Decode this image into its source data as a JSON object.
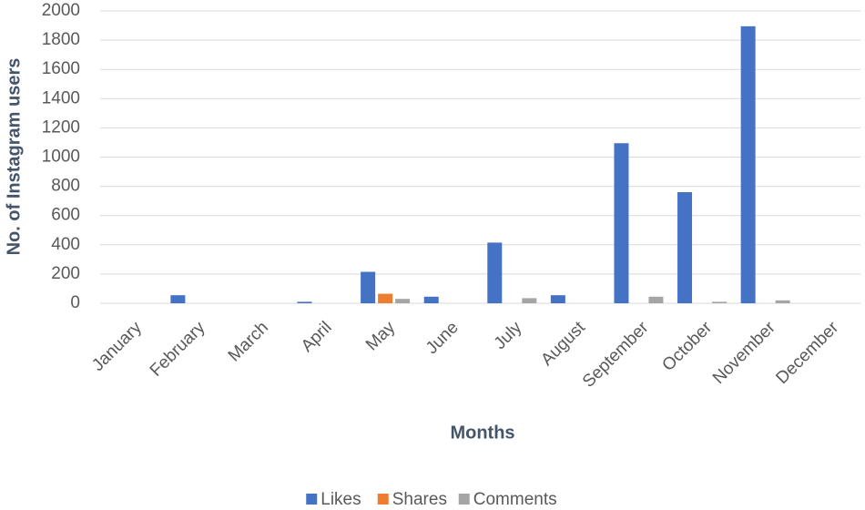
{
  "chart_data": {
    "type": "bar",
    "x_label": "Months",
    "y_label": "No. of Instagram users",
    "categories": [
      "January",
      "February",
      "March",
      "April",
      "May",
      "June",
      "July",
      "August",
      "September",
      "October",
      "November",
      "December"
    ],
    "series": [
      {
        "name": "Likes",
        "color": "#4472c4",
        "values": [
          0,
          55,
          0,
          10,
          215,
          45,
          415,
          55,
          1095,
          760,
          1895,
          0
        ]
      },
      {
        "name": "Shares",
        "color": "#ed7d31",
        "values": [
          0,
          0,
          0,
          0,
          65,
          0,
          0,
          0,
          0,
          0,
          0,
          0
        ]
      },
      {
        "name": "Comments",
        "color": "#a5a5a5",
        "values": [
          0,
          0,
          0,
          0,
          30,
          0,
          35,
          0,
          45,
          10,
          20,
          0
        ]
      }
    ],
    "ylim": [
      0,
      2000
    ],
    "yticks": [
      0,
      200,
      400,
      600,
      800,
      1000,
      1200,
      1400,
      1600,
      1800,
      2000
    ],
    "grid": true,
    "legend": "bottom"
  }
}
